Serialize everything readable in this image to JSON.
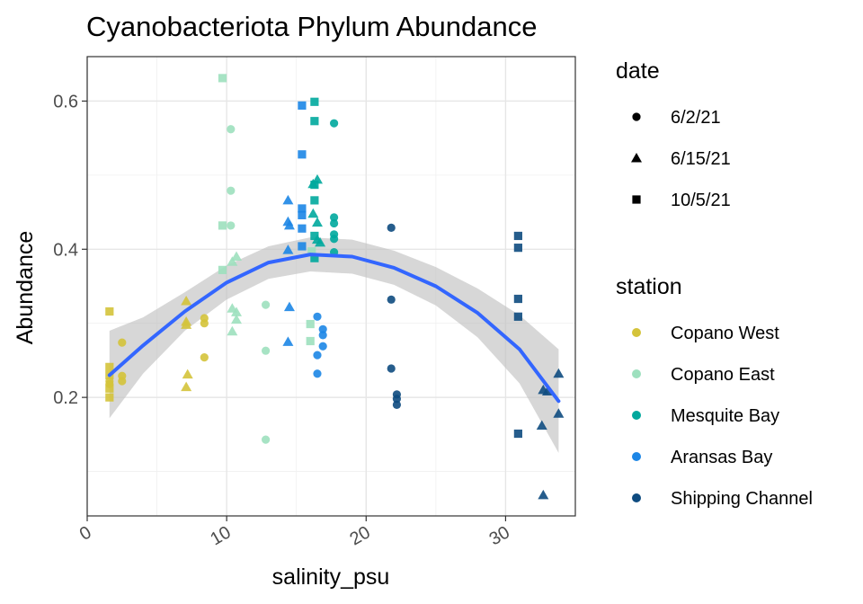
{
  "chart_data": {
    "type": "scatter",
    "title": "Cyanobacteriota Phylum Abundance",
    "xlabel": "salinity_psu",
    "ylabel": "Abundance",
    "xlim": [
      0,
      35
    ],
    "ylim": [
      0.04,
      0.66
    ],
    "x_ticks": [
      0,
      10,
      20,
      30
    ],
    "y_ticks": [
      0.2,
      0.4,
      0.6
    ],
    "grid": true,
    "legends": {
      "date": {
        "title": "date",
        "entries": [
          {
            "label": "6/2/21",
            "shape": "circle"
          },
          {
            "label": "6/15/21",
            "shape": "triangle"
          },
          {
            "label": "10/5/21",
            "shape": "square"
          }
        ]
      },
      "station": {
        "title": "station",
        "entries": [
          {
            "label": "Copano West",
            "color": "#D4C33A"
          },
          {
            "label": "Copano East",
            "color": "#9DE0BE"
          },
          {
            "label": "Mesquite Bay",
            "color": "#00A89D"
          },
          {
            "label": "Aransas Bay",
            "color": "#1C86E6"
          },
          {
            "label": "Shipping Channel",
            "color": "#0E4B80"
          }
        ]
      }
    },
    "points": [
      {
        "station": "Copano West",
        "date": "6/2/21",
        "x": 1.6,
        "y": 0.222
      },
      {
        "station": "Copano West",
        "date": "6/2/21",
        "x": 1.6,
        "y": 0.218
      },
      {
        "station": "Copano West",
        "date": "6/2/21",
        "x": 2.5,
        "y": 0.274
      },
      {
        "station": "Copano West",
        "date": "6/2/21",
        "x": 2.5,
        "y": 0.229
      },
      {
        "station": "Copano West",
        "date": "6/2/21",
        "x": 2.5,
        "y": 0.222
      },
      {
        "station": "Copano West",
        "date": "6/2/21",
        "x": 8.4,
        "y": 0.307
      },
      {
        "station": "Copano West",
        "date": "6/2/21",
        "x": 8.4,
        "y": 0.3
      },
      {
        "station": "Copano West",
        "date": "6/2/21",
        "x": 8.4,
        "y": 0.254
      },
      {
        "station": "Copano West",
        "date": "6/15/21",
        "x": 7.1,
        "y": 0.33
      },
      {
        "station": "Copano West",
        "date": "6/15/21",
        "x": 7.1,
        "y": 0.302
      },
      {
        "station": "Copano West",
        "date": "6/15/21",
        "x": 7.1,
        "y": 0.298
      },
      {
        "station": "Copano West",
        "date": "6/15/21",
        "x": 7.2,
        "y": 0.231
      },
      {
        "station": "Copano West",
        "date": "6/15/21",
        "x": 7.1,
        "y": 0.214
      },
      {
        "station": "Copano West",
        "date": "10/5/21",
        "x": 1.6,
        "y": 0.316
      },
      {
        "station": "Copano West",
        "date": "10/5/21",
        "x": 1.6,
        "y": 0.241
      },
      {
        "station": "Copano West",
        "date": "10/5/21",
        "x": 1.6,
        "y": 0.23
      },
      {
        "station": "Copano West",
        "date": "10/5/21",
        "x": 1.6,
        "y": 0.212
      },
      {
        "station": "Copano West",
        "date": "10/5/21",
        "x": 1.6,
        "y": 0.2
      },
      {
        "station": "Copano East",
        "date": "6/2/21",
        "x": 10.3,
        "y": 0.562
      },
      {
        "station": "Copano East",
        "date": "6/2/21",
        "x": 10.3,
        "y": 0.479
      },
      {
        "station": "Copano East",
        "date": "6/2/21",
        "x": 10.3,
        "y": 0.432
      },
      {
        "station": "Copano East",
        "date": "6/2/21",
        "x": 12.8,
        "y": 0.325
      },
      {
        "station": "Copano East",
        "date": "6/2/21",
        "x": 12.8,
        "y": 0.263
      },
      {
        "station": "Copano East",
        "date": "6/2/21",
        "x": 12.8,
        "y": 0.143
      },
      {
        "station": "Copano East",
        "date": "6/15/21",
        "x": 10.7,
        "y": 0.39
      },
      {
        "station": "Copano East",
        "date": "6/15/21",
        "x": 10.4,
        "y": 0.383
      },
      {
        "station": "Copano East",
        "date": "6/15/21",
        "x": 10.4,
        "y": 0.32
      },
      {
        "station": "Copano East",
        "date": "6/15/21",
        "x": 10.7,
        "y": 0.315
      },
      {
        "station": "Copano East",
        "date": "6/15/21",
        "x": 10.7,
        "y": 0.305
      },
      {
        "station": "Copano East",
        "date": "6/15/21",
        "x": 10.4,
        "y": 0.289
      },
      {
        "station": "Copano East",
        "date": "10/5/21",
        "x": 9.7,
        "y": 0.631
      },
      {
        "station": "Copano East",
        "date": "10/5/21",
        "x": 9.7,
        "y": 0.432
      },
      {
        "station": "Copano East",
        "date": "10/5/21",
        "x": 9.7,
        "y": 0.372
      },
      {
        "station": "Copano East",
        "date": "10/5/21",
        "x": 16.0,
        "y": 0.299
      },
      {
        "station": "Copano East",
        "date": "10/5/21",
        "x": 16.0,
        "y": 0.276
      },
      {
        "station": "Copano East",
        "date": "10/5/21",
        "x": 16.1,
        "y": 0.397
      },
      {
        "station": "Mesquite Bay",
        "date": "6/2/21",
        "x": 17.7,
        "y": 0.57
      },
      {
        "station": "Mesquite Bay",
        "date": "6/2/21",
        "x": 17.7,
        "y": 0.443
      },
      {
        "station": "Mesquite Bay",
        "date": "6/2/21",
        "x": 17.7,
        "y": 0.435
      },
      {
        "station": "Mesquite Bay",
        "date": "6/2/21",
        "x": 17.7,
        "y": 0.42
      },
      {
        "station": "Mesquite Bay",
        "date": "6/2/21",
        "x": 17.7,
        "y": 0.414
      },
      {
        "station": "Mesquite Bay",
        "date": "6/2/21",
        "x": 17.7,
        "y": 0.396
      },
      {
        "station": "Mesquite Bay",
        "date": "6/15/21",
        "x": 16.5,
        "y": 0.494
      },
      {
        "station": "Mesquite Bay",
        "date": "6/15/21",
        "x": 16.2,
        "y": 0.488
      },
      {
        "station": "Mesquite Bay",
        "date": "6/15/21",
        "x": 16.2,
        "y": 0.448
      },
      {
        "station": "Mesquite Bay",
        "date": "6/15/21",
        "x": 16.5,
        "y": 0.436
      },
      {
        "station": "Mesquite Bay",
        "date": "6/15/21",
        "x": 16.5,
        "y": 0.413
      },
      {
        "station": "Mesquite Bay",
        "date": "6/15/21",
        "x": 16.7,
        "y": 0.409
      },
      {
        "station": "Mesquite Bay",
        "date": "10/5/21",
        "x": 16.3,
        "y": 0.599
      },
      {
        "station": "Mesquite Bay",
        "date": "10/5/21",
        "x": 16.3,
        "y": 0.573
      },
      {
        "station": "Mesquite Bay",
        "date": "10/5/21",
        "x": 16.3,
        "y": 0.487
      },
      {
        "station": "Mesquite Bay",
        "date": "10/5/21",
        "x": 16.3,
        "y": 0.466
      },
      {
        "station": "Mesquite Bay",
        "date": "10/5/21",
        "x": 16.3,
        "y": 0.418
      },
      {
        "station": "Mesquite Bay",
        "date": "10/5/21",
        "x": 16.3,
        "y": 0.388
      },
      {
        "station": "Aransas Bay",
        "date": "6/2/21",
        "x": 16.5,
        "y": 0.309
      },
      {
        "station": "Aransas Bay",
        "date": "6/2/21",
        "x": 16.9,
        "y": 0.292
      },
      {
        "station": "Aransas Bay",
        "date": "6/2/21",
        "x": 16.9,
        "y": 0.284
      },
      {
        "station": "Aransas Bay",
        "date": "6/2/21",
        "x": 16.9,
        "y": 0.269
      },
      {
        "station": "Aransas Bay",
        "date": "6/2/21",
        "x": 16.5,
        "y": 0.257
      },
      {
        "station": "Aransas Bay",
        "date": "6/2/21",
        "x": 16.5,
        "y": 0.232
      },
      {
        "station": "Aransas Bay",
        "date": "6/15/21",
        "x": 14.4,
        "y": 0.466
      },
      {
        "station": "Aransas Bay",
        "date": "6/15/21",
        "x": 14.4,
        "y": 0.437
      },
      {
        "station": "Aransas Bay",
        "date": "6/15/21",
        "x": 14.5,
        "y": 0.432
      },
      {
        "station": "Aransas Bay",
        "date": "6/15/21",
        "x": 14.4,
        "y": 0.399
      },
      {
        "station": "Aransas Bay",
        "date": "6/15/21",
        "x": 14.5,
        "y": 0.322
      },
      {
        "station": "Aransas Bay",
        "date": "6/15/21",
        "x": 14.4,
        "y": 0.275
      },
      {
        "station": "Aransas Bay",
        "date": "10/5/21",
        "x": 15.4,
        "y": 0.594
      },
      {
        "station": "Aransas Bay",
        "date": "10/5/21",
        "x": 15.4,
        "y": 0.528
      },
      {
        "station": "Aransas Bay",
        "date": "10/5/21",
        "x": 15.4,
        "y": 0.455
      },
      {
        "station": "Aransas Bay",
        "date": "10/5/21",
        "x": 15.4,
        "y": 0.446
      },
      {
        "station": "Aransas Bay",
        "date": "10/5/21",
        "x": 15.4,
        "y": 0.428
      },
      {
        "station": "Aransas Bay",
        "date": "10/5/21",
        "x": 15.4,
        "y": 0.404
      },
      {
        "station": "Shipping Channel",
        "date": "6/2/21",
        "x": 21.8,
        "y": 0.429
      },
      {
        "station": "Shipping Channel",
        "date": "6/2/21",
        "x": 21.8,
        "y": 0.332
      },
      {
        "station": "Shipping Channel",
        "date": "6/2/21",
        "x": 21.8,
        "y": 0.239
      },
      {
        "station": "Shipping Channel",
        "date": "6/2/21",
        "x": 22.2,
        "y": 0.204
      },
      {
        "station": "Shipping Channel",
        "date": "6/2/21",
        "x": 22.2,
        "y": 0.198
      },
      {
        "station": "Shipping Channel",
        "date": "6/2/21",
        "x": 22.2,
        "y": 0.19
      },
      {
        "station": "Shipping Channel",
        "date": "6/15/21",
        "x": 32.7,
        "y": 0.21
      },
      {
        "station": "Shipping Channel",
        "date": "6/15/21",
        "x": 33.8,
        "y": 0.232
      },
      {
        "station": "Shipping Channel",
        "date": "6/15/21",
        "x": 33.8,
        "y": 0.178
      },
      {
        "station": "Shipping Channel",
        "date": "6/15/21",
        "x": 32.6,
        "y": 0.162
      },
      {
        "station": "Shipping Channel",
        "date": "6/15/21",
        "x": 32.7,
        "y": 0.068
      },
      {
        "station": "Shipping Channel",
        "date": "6/15/21",
        "x": 33.0,
        "y": 0.208
      },
      {
        "station": "Shipping Channel",
        "date": "10/5/21",
        "x": 30.9,
        "y": 0.418
      },
      {
        "station": "Shipping Channel",
        "date": "10/5/21",
        "x": 30.9,
        "y": 0.402
      },
      {
        "station": "Shipping Channel",
        "date": "10/5/21",
        "x": 30.9,
        "y": 0.333
      },
      {
        "station": "Shipping Channel",
        "date": "10/5/21",
        "x": 30.9,
        "y": 0.309
      },
      {
        "station": "Shipping Channel",
        "date": "10/5/21",
        "x": 30.9,
        "y": 0.151
      }
    ],
    "smooth": {
      "method": "loess",
      "color": "#3366FF",
      "band_color": "#bfbfbf",
      "fit": [
        {
          "x": 1.6,
          "y": 0.23,
          "lo": 0.172,
          "hi": 0.29
        },
        {
          "x": 4.0,
          "y": 0.27,
          "lo": 0.232,
          "hi": 0.308
        },
        {
          "x": 7.0,
          "y": 0.316,
          "lo": 0.29,
          "hi": 0.342
        },
        {
          "x": 10.0,
          "y": 0.355,
          "lo": 0.332,
          "hi": 0.378
        },
        {
          "x": 13.0,
          "y": 0.382,
          "lo": 0.36,
          "hi": 0.404
        },
        {
          "x": 16.0,
          "y": 0.393,
          "lo": 0.37,
          "hi": 0.416
        },
        {
          "x": 19.0,
          "y": 0.39,
          "lo": 0.367,
          "hi": 0.413
        },
        {
          "x": 22.0,
          "y": 0.375,
          "lo": 0.352,
          "hi": 0.398
        },
        {
          "x": 25.0,
          "y": 0.35,
          "lo": 0.324,
          "hi": 0.376
        },
        {
          "x": 28.0,
          "y": 0.314,
          "lo": 0.281,
          "hi": 0.347
        },
        {
          "x": 31.0,
          "y": 0.265,
          "lo": 0.219,
          "hi": 0.311
        },
        {
          "x": 33.8,
          "y": 0.195,
          "lo": 0.125,
          "hi": 0.265
        }
      ]
    }
  }
}
